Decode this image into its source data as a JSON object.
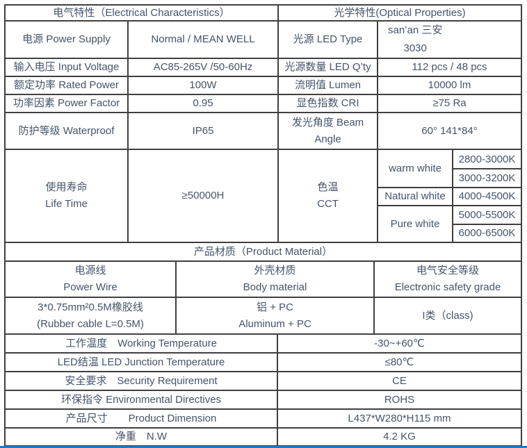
{
  "colors": {
    "text": "#44546a",
    "border": "#3f3f3f",
    "bottom_accent_line": "#2e75b6"
  },
  "header": {
    "electrical": "电气特性（Electrical Characteristics）",
    "optical": "光学特性(Optical Properties)"
  },
  "rows": {
    "power_supply": {
      "label": "电源 Power Supply",
      "value": "Normal / MEAN WELL"
    },
    "led_type": {
      "label": "光源 LED Type",
      "value_line1": "san’an 三安",
      "value_line2": "3030"
    },
    "input_voltage": {
      "label": "输入电压 Input Voltage",
      "value": "AC85-265V /50-60Hz"
    },
    "led_qty": {
      "label": "光源数量 LED Q’ty",
      "value": "112 pcs / 48 pcs"
    },
    "rated_power": {
      "label": "额定功率 Rated Power",
      "value": "100W"
    },
    "lumen": {
      "label": "流明值 Lumen",
      "value": "10000 lm"
    },
    "power_factor": {
      "label": "功率因素 Power Factor",
      "value": "0.95"
    },
    "cri": {
      "label": "显色指数 CRI",
      "value": "≥75 Ra"
    },
    "waterproof": {
      "label": "防护等级 Waterproof",
      "value": "IP65"
    },
    "beam_angle": {
      "label_line1": "发光角度 Beam",
      "label_line2": "Angle",
      "value": "60° 141*84°"
    },
    "life_time": {
      "label_line1": "使用寿命",
      "label_line2": "Life Time",
      "value": "≥50000H"
    },
    "cct": {
      "label_line1": "色温",
      "label_line2": "CCT",
      "warm_white": {
        "name": "warm white",
        "range1": "2800-3000K",
        "range2": "3000-3200K"
      },
      "natural_white": {
        "name": "Natural white",
        "range1": "4000-4500K"
      },
      "pure_white": {
        "name": "Pure white",
        "range1": "5000-5500K",
        "range2": "6000-6500K"
      }
    }
  },
  "material": {
    "header": "产品材质（Product Material）",
    "power_wire": {
      "label_line1": "电源线",
      "label_line2": "Power Wire",
      "value_line1": "3*0.75mm²0.5M橡胶线",
      "value_line2": "(Rubber cable L=0.5M)"
    },
    "body_material": {
      "label_line1": "外壳材质",
      "label_line2": "Body material",
      "value_line1": "铝 + PC",
      "value_line2": "Aluminum + PC"
    },
    "safety_grade": {
      "label_line1": "电气安全等级",
      "label_line2": "Electronic safety grade",
      "value": "I类（class)"
    }
  },
  "bottom_rows": {
    "working_temperature": {
      "label": "工作温度　Working Temperature",
      "value": "-30~+60℃"
    },
    "junction_temperature": {
      "label": "LED结温 LED Junction Temperature",
      "value": "≤80℃"
    },
    "security_requirement": {
      "label": "安全要求　Security Requirement",
      "value": "CE"
    },
    "environmental_directives": {
      "label": "环保指令 Environmental Directives",
      "value": "ROHS"
    },
    "product_dimension": {
      "label": "产品尺寸　　Product Dimension",
      "value": "L437*W280*H115 mm"
    },
    "net_weight": {
      "label": "净重　N.W",
      "value": "4.2 KG"
    }
  }
}
